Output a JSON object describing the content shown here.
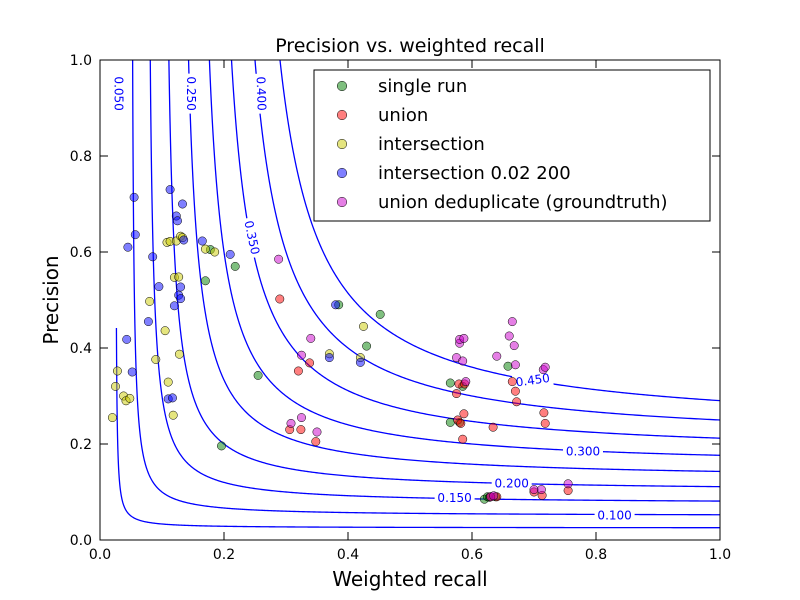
{
  "chart_data": {
    "type": "scatter",
    "title": "Precision vs. weighted recall",
    "xlabel": "Weighted recall",
    "ylabel": "Precision",
    "xlim": [
      0,
      1
    ],
    "ylim": [
      0,
      1
    ],
    "xticks": [
      "0.0",
      "0.2",
      "0.4",
      "0.6",
      "0.8",
      "1.0"
    ],
    "yticks": [
      "0.0",
      "0.2",
      "0.4",
      "0.6",
      "0.8",
      "1.0"
    ],
    "grid": false,
    "legend_position": "top-right",
    "contour_color": "#0000ff",
    "contours": [
      {
        "level": 0.05,
        "label": "0.050",
        "label_at": [
          0.03,
          0.93
        ],
        "rot": 90
      },
      {
        "level": 0.1,
        "label": "0.100",
        "label_at": [
          0.83,
          0.051
        ],
        "rot": 0
      },
      {
        "level": 0.15,
        "label": "0.150",
        "label_at": [
          0.572,
          0.087
        ],
        "rot": 0
      },
      {
        "level": 0.2,
        "label": "0.200",
        "label_at": [
          0.664,
          0.118
        ],
        "rot": 0
      },
      {
        "level": 0.25,
        "label": "0.250",
        "label_at": [
          0.147,
          0.93
        ],
        "rot": 90
      },
      {
        "level": 0.3,
        "label": "0.300",
        "label_at": [
          0.779,
          0.184
        ],
        "rot": 0
      },
      {
        "level": 0.35,
        "label": "0.350",
        "label_at": [
          0.245,
          0.63
        ],
        "rot": 78
      },
      {
        "level": 0.4,
        "label": "0.400",
        "label_at": [
          0.26,
          0.93
        ],
        "rot": 88
      },
      {
        "level": 0.45,
        "label": "0.450",
        "label_at": [
          0.698,
          0.333
        ],
        "rot": -8
      }
    ],
    "series": [
      {
        "name": "single run",
        "color": "#008000",
        "points": [
          [
            0.17,
            0.54
          ],
          [
            0.178,
            0.605
          ],
          [
            0.196,
            0.196
          ],
          [
            0.218,
            0.57
          ],
          [
            0.255,
            0.343
          ],
          [
            0.385,
            0.49
          ],
          [
            0.43,
            0.404
          ],
          [
            0.452,
            0.47
          ],
          [
            0.565,
            0.327
          ],
          [
            0.565,
            0.245
          ],
          [
            0.58,
            0.245
          ],
          [
            0.585,
            0.32
          ],
          [
            0.62,
            0.085
          ],
          [
            0.625,
            0.09
          ],
          [
            0.628,
            0.089
          ],
          [
            0.638,
            0.09
          ],
          [
            0.658,
            0.362
          ]
        ]
      },
      {
        "name": "union",
        "color": "#ff0000",
        "points": [
          [
            0.29,
            0.502
          ],
          [
            0.306,
            0.23
          ],
          [
            0.32,
            0.352
          ],
          [
            0.324,
            0.23
          ],
          [
            0.338,
            0.369
          ],
          [
            0.348,
            0.205
          ],
          [
            0.575,
            0.305
          ],
          [
            0.577,
            0.25
          ],
          [
            0.579,
            0.325
          ],
          [
            0.582,
            0.243
          ],
          [
            0.585,
            0.21
          ],
          [
            0.587,
            0.263
          ],
          [
            0.588,
            0.325
          ],
          [
            0.63,
            0.09
          ],
          [
            0.634,
            0.235
          ],
          [
            0.64,
            0.09
          ],
          [
            0.665,
            0.33
          ],
          [
            0.67,
            0.31
          ],
          [
            0.672,
            0.288
          ],
          [
            0.7,
            0.1
          ],
          [
            0.713,
            0.093
          ],
          [
            0.716,
            0.265
          ],
          [
            0.718,
            0.243
          ],
          [
            0.755,
            0.103
          ]
        ]
      },
      {
        "name": "intersection",
        "color": "#cccc00",
        "points": [
          [
            0.02,
            0.255
          ],
          [
            0.025,
            0.32
          ],
          [
            0.028,
            0.352
          ],
          [
            0.038,
            0.3
          ],
          [
            0.042,
            0.29
          ],
          [
            0.048,
            0.295
          ],
          [
            0.08,
            0.497
          ],
          [
            0.09,
            0.376
          ],
          [
            0.105,
            0.436
          ],
          [
            0.108,
            0.62
          ],
          [
            0.11,
            0.329
          ],
          [
            0.113,
            0.622
          ],
          [
            0.118,
            0.26
          ],
          [
            0.12,
            0.547
          ],
          [
            0.123,
            0.623
          ],
          [
            0.127,
            0.548
          ],
          [
            0.128,
            0.387
          ],
          [
            0.13,
            0.633
          ],
          [
            0.133,
            0.63
          ],
          [
            0.17,
            0.606
          ],
          [
            0.185,
            0.6
          ],
          [
            0.37,
            0.388
          ],
          [
            0.42,
            0.38
          ],
          [
            0.425,
            0.445
          ]
        ]
      },
      {
        "name": "intersection 0.02 200",
        "color": "#0000ff",
        "points": [
          [
            0.043,
            0.418
          ],
          [
            0.045,
            0.61
          ],
          [
            0.052,
            0.35
          ],
          [
            0.055,
            0.714
          ],
          [
            0.057,
            0.636
          ],
          [
            0.078,
            0.455
          ],
          [
            0.085,
            0.59
          ],
          [
            0.095,
            0.528
          ],
          [
            0.11,
            0.294
          ],
          [
            0.113,
            0.73
          ],
          [
            0.117,
            0.296
          ],
          [
            0.12,
            0.488
          ],
          [
            0.123,
            0.675
          ],
          [
            0.125,
            0.665
          ],
          [
            0.127,
            0.51
          ],
          [
            0.13,
            0.527
          ],
          [
            0.13,
            0.503
          ],
          [
            0.133,
            0.7
          ],
          [
            0.135,
            0.625
          ],
          [
            0.165,
            0.623
          ],
          [
            0.21,
            0.595
          ],
          [
            0.37,
            0.38
          ],
          [
            0.38,
            0.49
          ],
          [
            0.42,
            0.37
          ]
        ]
      },
      {
        "name": "union deduplicate (groundtruth)",
        "color": "#cc00cc",
        "points": [
          [
            0.288,
            0.585
          ],
          [
            0.308,
            0.243
          ],
          [
            0.325,
            0.385
          ],
          [
            0.325,
            0.255
          ],
          [
            0.34,
            0.42
          ],
          [
            0.35,
            0.225
          ],
          [
            0.575,
            0.38
          ],
          [
            0.58,
            0.41
          ],
          [
            0.58,
            0.418
          ],
          [
            0.585,
            0.373
          ],
          [
            0.587,
            0.42
          ],
          [
            0.59,
            0.33
          ],
          [
            0.63,
            0.09
          ],
          [
            0.635,
            0.092
          ],
          [
            0.64,
            0.383
          ],
          [
            0.66,
            0.425
          ],
          [
            0.665,
            0.455
          ],
          [
            0.668,
            0.405
          ],
          [
            0.67,
            0.365
          ],
          [
            0.7,
            0.105
          ],
          [
            0.712,
            0.105
          ],
          [
            0.715,
            0.355
          ],
          [
            0.718,
            0.36
          ],
          [
            0.755,
            0.117
          ]
        ]
      }
    ]
  }
}
